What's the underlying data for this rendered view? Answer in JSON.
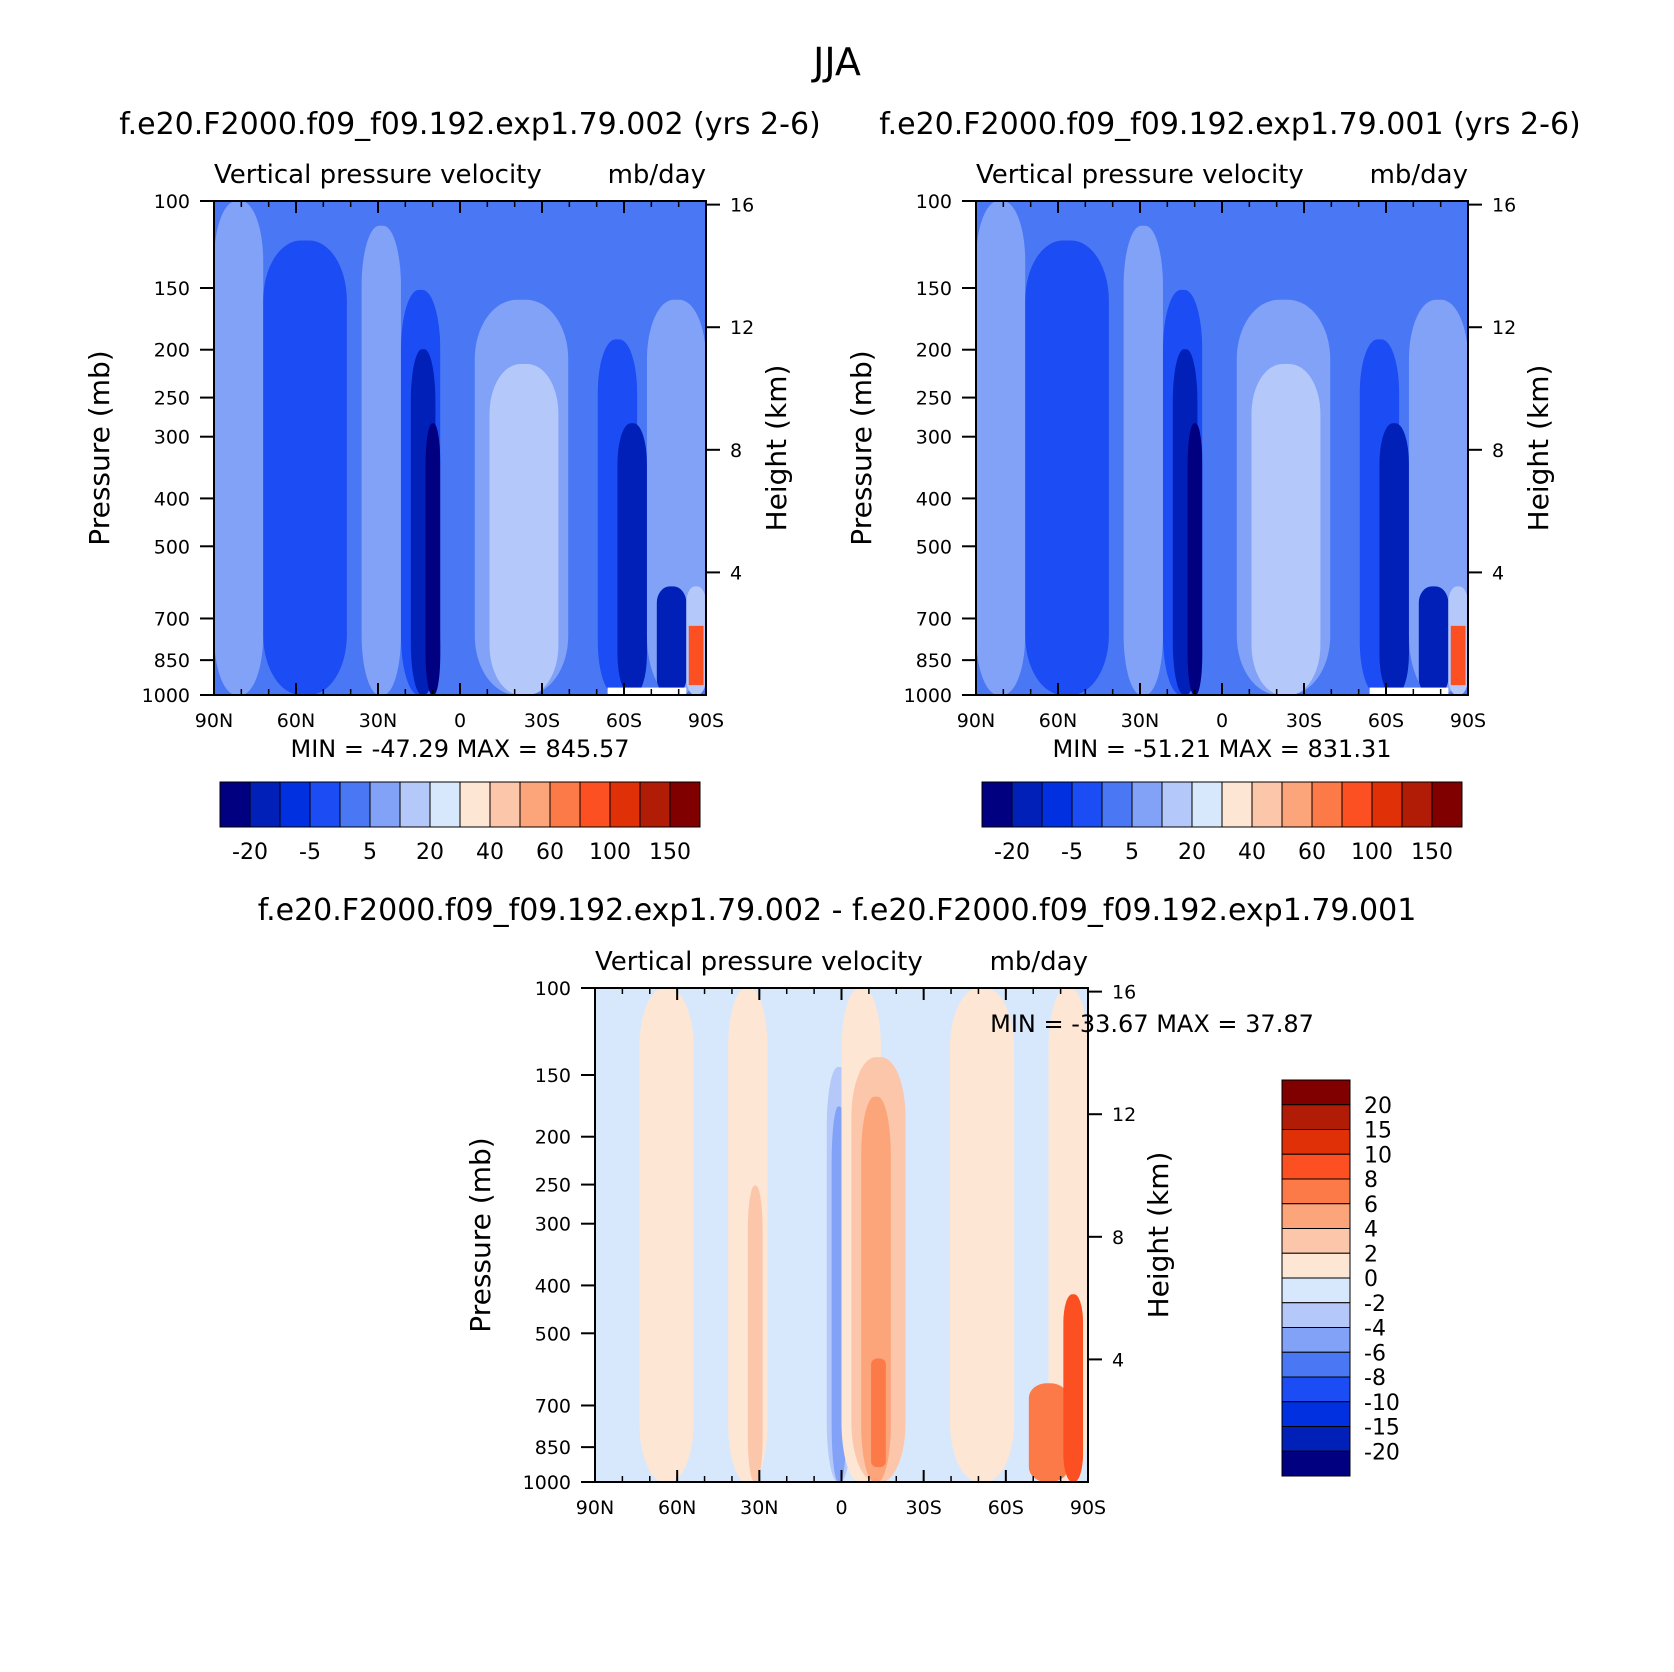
{
  "figure": {
    "title": "JJA"
  },
  "panels": [
    {
      "title": "f.e20.F2000.f09_f09.192.exp1.79.002 (yrs 2-6)",
      "subtitle_left": "Vertical pressure velocity",
      "subtitle_right": "mb/day",
      "ylabel": "Pressure (mb)",
      "y2label": "Height (km)",
      "minmax": "MIN = -47.29   MAX = 845.57"
    },
    {
      "title": "f.e20.F2000.f09_f09.192.exp1.79.001 (yrs 2-6)",
      "subtitle_left": "Vertical pressure velocity",
      "subtitle_right": "mb/day",
      "ylabel": "Pressure (mb)",
      "y2label": "Height (km)",
      "minmax": "MIN = -51.21   MAX = 831.31"
    },
    {
      "title": "f.e20.F2000.f09_f09.192.exp1.79.002 - f.e20.F2000.f09_f09.192.exp1.79.001",
      "subtitle_left": "Vertical pressure velocity",
      "subtitle_right": "mb/day",
      "ylabel": "Pressure (mb)",
      "y2label": "Height (km)",
      "minmax": "MIN = -33.67   MAX =   37.87"
    }
  ],
  "chart_data": [
    {
      "type": "heatmap",
      "title": "f.e20.F2000.f09_f09.192.exp1.79.002 (yrs 2-6)",
      "xlabel": "",
      "ylabel": "Pressure (mb)",
      "y2label": "Height (km)",
      "x_ticks": [
        "90N",
        "60N",
        "30N",
        "0",
        "30S",
        "60S",
        "90S"
      ],
      "x_range": [
        90,
        -90
      ],
      "y_ticks": [
        100,
        150,
        200,
        250,
        300,
        400,
        500,
        700,
        850,
        1000
      ],
      "y_range": [
        100,
        1000
      ],
      "y_scale": "log",
      "y2_ticks": [
        16,
        12,
        8,
        4
      ],
      "colorbar": {
        "orientation": "horizontal",
        "labels": [
          "-20",
          "-5",
          "5",
          "20",
          "40",
          "60",
          "100",
          "150"
        ],
        "colors": [
          "#000080",
          "#0020b8",
          "#0030e0",
          "#1c4cf4",
          "#4a78f5",
          "#82a2f8",
          "#b4c8fa",
          "#d8e8fc",
          "#fde6d4",
          "#fcc6aa",
          "#fca47a",
          "#fc7a48",
          "#fc5022",
          "#e03008",
          "#b01c06",
          "#800000"
        ]
      },
      "min": -47.29,
      "max": 845.57
    },
    {
      "type": "heatmap",
      "title": "f.e20.F2000.f09_f09.192.exp1.79.001 (yrs 2-6)",
      "xlabel": "",
      "ylabel": "Pressure (mb)",
      "y2label": "Height (km)",
      "x_ticks": [
        "90N",
        "60N",
        "30N",
        "0",
        "30S",
        "60S",
        "90S"
      ],
      "x_range": [
        90,
        -90
      ],
      "y_ticks": [
        100,
        150,
        200,
        250,
        300,
        400,
        500,
        700,
        850,
        1000
      ],
      "y_range": [
        100,
        1000
      ],
      "y_scale": "log",
      "y2_ticks": [
        16,
        12,
        8,
        4
      ],
      "colorbar": {
        "orientation": "horizontal",
        "labels": [
          "-20",
          "-5",
          "5",
          "20",
          "40",
          "60",
          "100",
          "150"
        ],
        "colors": [
          "#000080",
          "#0020b8",
          "#0030e0",
          "#1c4cf4",
          "#4a78f5",
          "#82a2f8",
          "#b4c8fa",
          "#d8e8fc",
          "#fde6d4",
          "#fcc6aa",
          "#fca47a",
          "#fc7a48",
          "#fc5022",
          "#e03008",
          "#b01c06",
          "#800000"
        ]
      },
      "min": -51.21,
      "max": 831.31
    },
    {
      "type": "heatmap",
      "title": "f.e20.F2000.f09_f09.192.exp1.79.002 - f.e20.F2000.f09_f09.192.exp1.79.001",
      "xlabel": "",
      "ylabel": "Pressure (mb)",
      "y2label": "Height (km)",
      "x_ticks": [
        "90N",
        "60N",
        "30N",
        "0",
        "30S",
        "60S",
        "90S"
      ],
      "x_range": [
        90,
        -90
      ],
      "y_ticks": [
        100,
        150,
        200,
        250,
        300,
        400,
        500,
        700,
        850,
        1000
      ],
      "y_range": [
        100,
        1000
      ],
      "y_scale": "log",
      "y2_ticks": [
        16,
        12,
        8,
        4
      ],
      "colorbar": {
        "orientation": "vertical",
        "labels": [
          "20",
          "15",
          "10",
          "8",
          "6",
          "4",
          "2",
          "0",
          "-2",
          "-4",
          "-6",
          "-8",
          "-10",
          "-15",
          "-20"
        ],
        "colors": [
          "#800000",
          "#b01c06",
          "#e03008",
          "#fc5022",
          "#fc7a48",
          "#fca47a",
          "#fcc6aa",
          "#fde6d4",
          "#d8e8fc",
          "#b4c8fa",
          "#82a2f8",
          "#4a78f5",
          "#1c4cf4",
          "#0030e0",
          "#0020b8",
          "#000080"
        ]
      },
      "min": -33.67,
      "max": 37.87
    }
  ]
}
